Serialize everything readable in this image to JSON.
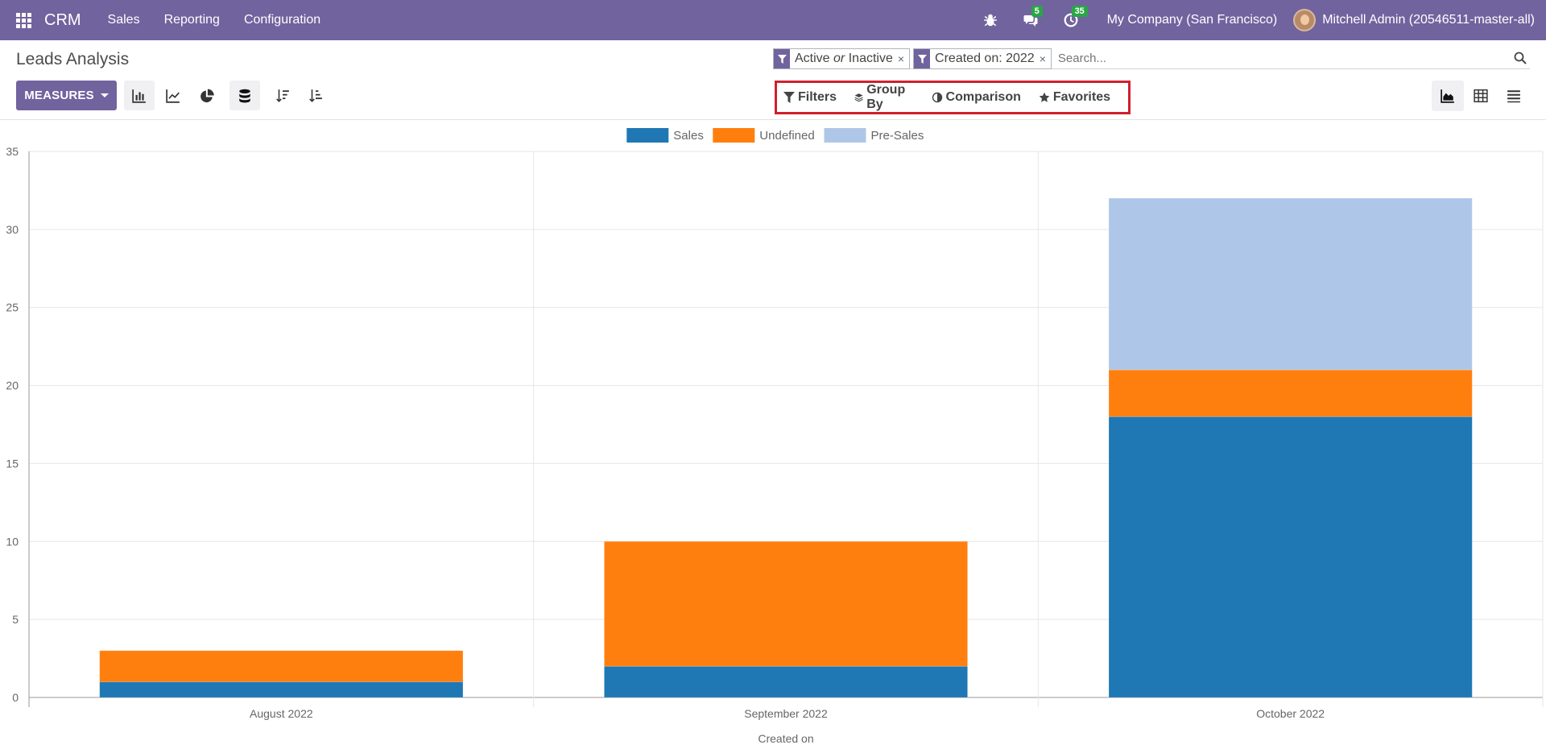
{
  "navbar": {
    "app_name": "CRM",
    "menus": [
      "Sales",
      "Reporting",
      "Configuration"
    ],
    "messages_count": "5",
    "activities_count": "35",
    "company": "My Company (San Francisco)",
    "user": "Mitchell Admin (20546511-master-all)"
  },
  "control_panel": {
    "title": "Leads Analysis",
    "measures_label": "MEASURES",
    "facets": [
      {
        "pre": "Active",
        "mid": "or",
        "post": "Inactive"
      },
      {
        "pre": "Created on: 2022",
        "mid": "",
        "post": ""
      }
    ],
    "search_placeholder": "Search...",
    "filter_buttons": {
      "filters": "Filters",
      "group_by": "Group By",
      "comparison": "Comparison",
      "favorites": "Favorites"
    }
  },
  "colors": {
    "navbar": "#71639e",
    "sales": "#1f77b4",
    "undefined": "#ff7f0e",
    "presales": "#aec7e8"
  },
  "chart_data": {
    "type": "bar",
    "stacked": true,
    "categories": [
      "August 2022",
      "September 2022",
      "October 2022"
    ],
    "series": [
      {
        "name": "Sales",
        "color": "#1f77b4",
        "values": [
          1,
          2,
          18
        ]
      },
      {
        "name": "Undefined",
        "color": "#ff7f0e",
        "values": [
          2,
          8,
          3
        ]
      },
      {
        "name": "Pre-Sales",
        "color": "#aec7e8",
        "values": [
          0,
          0,
          11
        ]
      }
    ],
    "xlabel": "Created on",
    "ylabel": "",
    "ylim": [
      0,
      35
    ],
    "yticks": [
      0,
      5,
      10,
      15,
      20,
      25,
      30,
      35
    ],
    "grid": true,
    "legend_position": "top-center"
  }
}
